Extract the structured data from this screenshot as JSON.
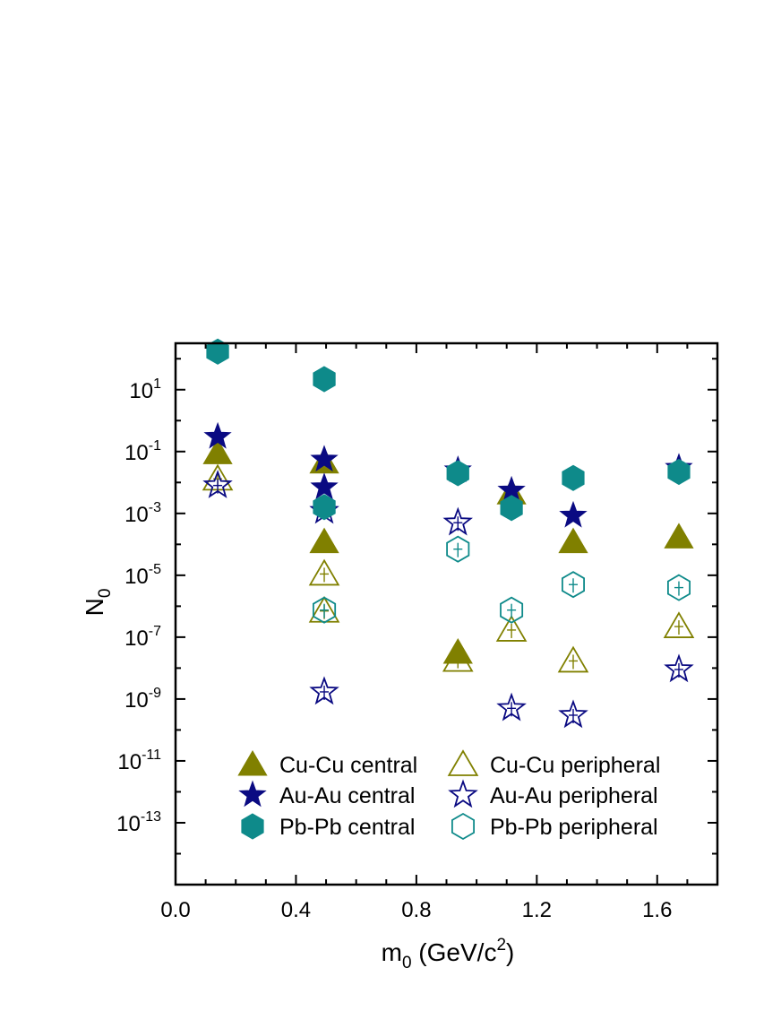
{
  "chart_data": {
    "type": "scatter",
    "xlabel": "m",
    "xlabel_sub": "0",
    "xlabel_unit": " (GeV/c",
    "xlabel_sup": "2",
    "xlabel_close": ")",
    "ylabel": "N",
    "ylabel_sub": "0",
    "xlim": [
      0.0,
      1.8
    ],
    "ylim_log10": [
      -15,
      2.5
    ],
    "y_scale": "log",
    "x_ticks": [
      "0.0",
      "0.4",
      "0.8",
      "1.2",
      "1.6"
    ],
    "x_tick_values": [
      0.0,
      0.4,
      0.8,
      1.2,
      1.6
    ],
    "y_tick_exponents": [
      1,
      -1,
      -3,
      -5,
      -7,
      -9,
      -11,
      -13
    ],
    "y_tick_base": "10",
    "y_tick_exp_labels": [
      "1",
      "-1",
      "-3",
      "-5",
      "-7",
      "-9",
      "-11",
      "-13"
    ],
    "grid": false,
    "legend_position": "bottom",
    "colors": {
      "cu": "#808000",
      "au": "#0a0a82",
      "pb": "#0e8a8a"
    },
    "series": [
      {
        "name": "Cu-Cu central",
        "marker": "triangle-filled",
        "color": "#808000",
        "points": [
          [
            0.14,
            0.09
          ],
          [
            0.494,
            0.045
          ],
          [
            0.494,
            0.00012
          ],
          [
            0.938,
            3.2e-08
          ],
          [
            1.116,
            0.0045
          ],
          [
            1.321,
            0.00012
          ],
          [
            1.672,
            0.00017
          ]
        ]
      },
      {
        "name": "Cu-Cu peripheral",
        "marker": "triangle-open",
        "color": "#808000",
        "points": [
          [
            0.14,
            0.013
          ],
          [
            0.494,
            1.1e-05
          ],
          [
            0.494,
            7e-07
          ],
          [
            0.938,
            1.8e-08
          ],
          [
            1.116,
            1.7e-07
          ],
          [
            1.321,
            1.7e-08
          ],
          [
            1.672,
            2.2e-07
          ]
        ]
      },
      {
        "name": "Au-Au central",
        "marker": "star-filled",
        "color": "#0a0a82",
        "points": [
          [
            0.14,
            0.3
          ],
          [
            0.494,
            0.055
          ],
          [
            0.494,
            0.007
          ],
          [
            0.938,
            0.025
          ],
          [
            1.116,
            0.0055
          ],
          [
            1.321,
            0.00085
          ],
          [
            1.672,
            0.03
          ]
        ]
      },
      {
        "name": "Au-Au peripheral",
        "marker": "star-open",
        "color": "#0a0a82",
        "points": [
          [
            0.14,
            0.008
          ],
          [
            0.494,
            0.0012
          ],
          [
            0.494,
            1.7e-09
          ],
          [
            0.938,
            0.0005
          ],
          [
            1.116,
            5e-10
          ],
          [
            1.321,
            3e-10
          ],
          [
            1.672,
            9e-09
          ]
        ]
      },
      {
        "name": "Pb-Pb central",
        "marker": "hexagon-filled",
        "color": "#0e8a8a",
        "points": [
          [
            0.14,
            170
          ],
          [
            0.494,
            22
          ],
          [
            0.494,
            0.0016
          ],
          [
            0.938,
            0.02
          ],
          [
            1.116,
            0.0015
          ],
          [
            1.321,
            0.014
          ],
          [
            1.672,
            0.022
          ]
        ]
      },
      {
        "name": "Pb-Pb peripheral",
        "marker": "hexagon-open",
        "color": "#0e8a8a",
        "points": [
          [
            0.494,
            7.5e-07
          ],
          [
            0.938,
            7e-05
          ],
          [
            1.116,
            7.5e-07
          ],
          [
            1.321,
            5e-06
          ],
          [
            1.672,
            4e-06
          ]
        ]
      }
    ]
  }
}
